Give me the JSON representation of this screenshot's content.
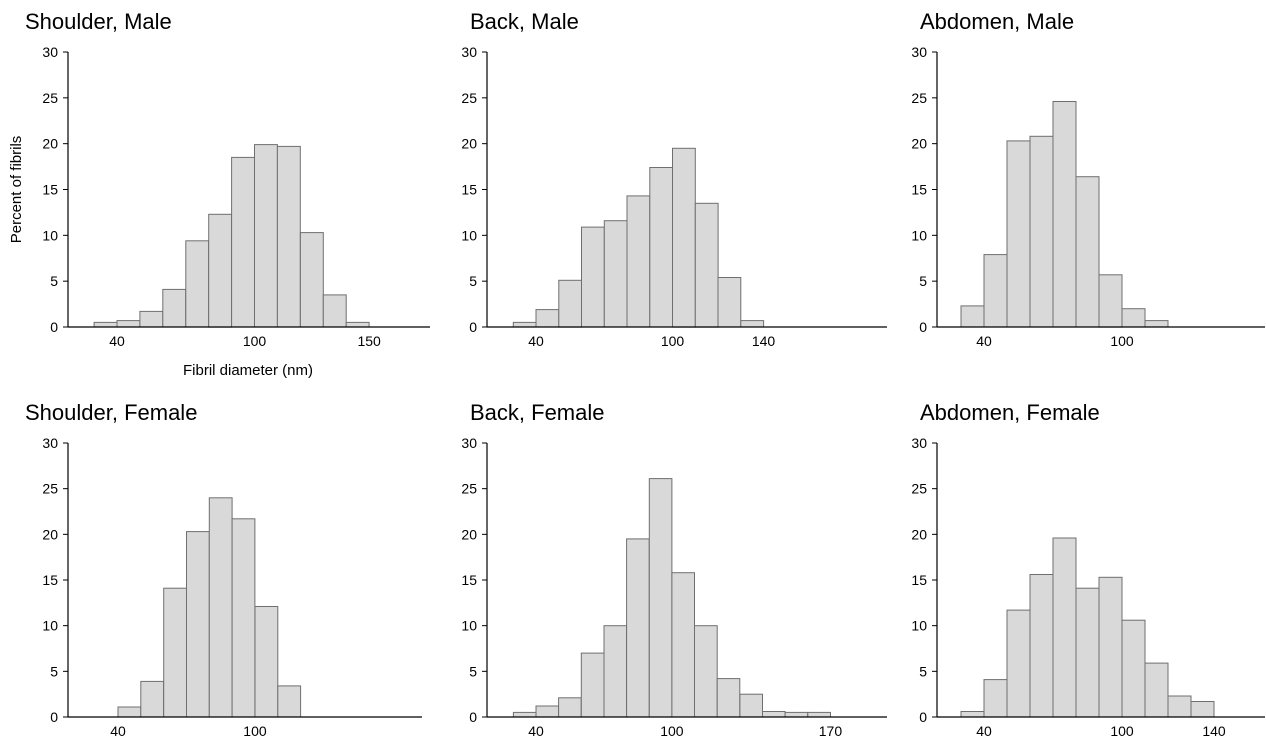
{
  "colors": {
    "bar_fill": "#d9d9d9",
    "bar_stroke": "#6f6f6f",
    "axis": "#000000"
  },
  "chart_data": [
    {
      "type": "bar",
      "title": "Shoulder, Male",
      "xlabel": "Fibril diameter (nm)",
      "ylabel": "Percent of fibrils",
      "ylim": [
        0,
        30
      ],
      "y_ticks": [
        0,
        5,
        10,
        15,
        20,
        25,
        30
      ],
      "x_ticks": [
        40,
        100,
        150
      ],
      "bin_width": 10,
      "bins": [
        {
          "x": 35,
          "value": 0.5
        },
        {
          "x": 45,
          "value": 0.7
        },
        {
          "x": 55,
          "value": 1.7
        },
        {
          "x": 65,
          "value": 4.1
        },
        {
          "x": 75,
          "value": 9.4
        },
        {
          "x": 85,
          "value": 12.3
        },
        {
          "x": 95,
          "value": 18.5
        },
        {
          "x": 105,
          "value": 19.9
        },
        {
          "x": 115,
          "value": 19.7
        },
        {
          "x": 125,
          "value": 10.3
        },
        {
          "x": 135,
          "value": 3.5
        },
        {
          "x": 145,
          "value": 0.5
        }
      ],
      "grid": false
    },
    {
      "type": "bar",
      "title": "Back, Male",
      "xlabel": "",
      "ylabel": "",
      "ylim": [
        0,
        30
      ],
      "y_ticks": [
        0,
        5,
        10,
        15,
        20,
        25,
        30
      ],
      "x_ticks": [
        40,
        100,
        140
      ],
      "bin_width": 10,
      "bins": [
        {
          "x": 35,
          "value": 0.5
        },
        {
          "x": 45,
          "value": 1.9
        },
        {
          "x": 55,
          "value": 5.1
        },
        {
          "x": 65,
          "value": 10.9
        },
        {
          "x": 75,
          "value": 11.6
        },
        {
          "x": 85,
          "value": 14.3
        },
        {
          "x": 95,
          "value": 17.4
        },
        {
          "x": 105,
          "value": 19.5
        },
        {
          "x": 115,
          "value": 13.5
        },
        {
          "x": 125,
          "value": 5.4
        },
        {
          "x": 135,
          "value": 0.7
        }
      ],
      "grid": false
    },
    {
      "type": "bar",
      "title": "Abdomen, Male",
      "xlabel": "",
      "ylabel": "",
      "ylim": [
        0,
        30
      ],
      "y_ticks": [
        0,
        5,
        10,
        15,
        20,
        25,
        30
      ],
      "x_ticks": [
        40,
        100
      ],
      "bin_width": 10,
      "bins": [
        {
          "x": 35,
          "value": 2.3
        },
        {
          "x": 45,
          "value": 7.9
        },
        {
          "x": 55,
          "value": 20.3
        },
        {
          "x": 65,
          "value": 20.8
        },
        {
          "x": 75,
          "value": 24.6
        },
        {
          "x": 85,
          "value": 16.4
        },
        {
          "x": 95,
          "value": 5.7
        },
        {
          "x": 105,
          "value": 2.0
        },
        {
          "x": 115,
          "value": 0.7
        }
      ],
      "grid": false
    },
    {
      "type": "bar",
      "title": "Shoulder, Female",
      "xlabel": "",
      "ylabel": "",
      "ylim": [
        0,
        30
      ],
      "y_ticks": [
        0,
        5,
        10,
        15,
        20,
        25,
        30
      ],
      "x_ticks": [
        40,
        100
      ],
      "bin_width": 10,
      "bins": [
        {
          "x": 45,
          "value": 1.1
        },
        {
          "x": 55,
          "value": 3.9
        },
        {
          "x": 65,
          "value": 14.1
        },
        {
          "x": 75,
          "value": 20.3
        },
        {
          "x": 85,
          "value": 24.0
        },
        {
          "x": 95,
          "value": 21.7
        },
        {
          "x": 105,
          "value": 12.1
        },
        {
          "x": 115,
          "value": 3.4
        }
      ],
      "grid": false
    },
    {
      "type": "bar",
      "title": "Back, Female",
      "xlabel": "",
      "ylabel": "",
      "ylim": [
        0,
        30
      ],
      "y_ticks": [
        0,
        5,
        10,
        15,
        20,
        25,
        30
      ],
      "x_ticks": [
        40,
        100,
        170
      ],
      "bin_width": 10,
      "bins": [
        {
          "x": 35,
          "value": 0.5
        },
        {
          "x": 45,
          "value": 1.2
        },
        {
          "x": 55,
          "value": 2.1
        },
        {
          "x": 65,
          "value": 7.0
        },
        {
          "x": 75,
          "value": 10.0
        },
        {
          "x": 85,
          "value": 19.5
        },
        {
          "x": 95,
          "value": 26.1
        },
        {
          "x": 105,
          "value": 15.8
        },
        {
          "x": 115,
          "value": 10.0
        },
        {
          "x": 125,
          "value": 4.2
        },
        {
          "x": 135,
          "value": 2.5
        },
        {
          "x": 145,
          "value": 0.6
        },
        {
          "x": 155,
          "value": 0.5
        },
        {
          "x": 165,
          "value": 0.5
        }
      ],
      "grid": false
    },
    {
      "type": "bar",
      "title": "Abdomen, Female",
      "xlabel": "",
      "ylabel": "",
      "ylim": [
        0,
        30
      ],
      "y_ticks": [
        0,
        5,
        10,
        15,
        20,
        25,
        30
      ],
      "x_ticks": [
        40,
        100,
        140
      ],
      "bin_width": 10,
      "bins": [
        {
          "x": 35,
          "value": 0.6
        },
        {
          "x": 45,
          "value": 4.1
        },
        {
          "x": 55,
          "value": 11.7
        },
        {
          "x": 65,
          "value": 15.6
        },
        {
          "x": 75,
          "value": 19.6
        },
        {
          "x": 85,
          "value": 14.1
        },
        {
          "x": 95,
          "value": 15.3
        },
        {
          "x": 105,
          "value": 10.6
        },
        {
          "x": 115,
          "value": 5.9
        },
        {
          "x": 125,
          "value": 2.3
        },
        {
          "x": 135,
          "value": 1.7
        }
      ],
      "grid": false
    }
  ]
}
